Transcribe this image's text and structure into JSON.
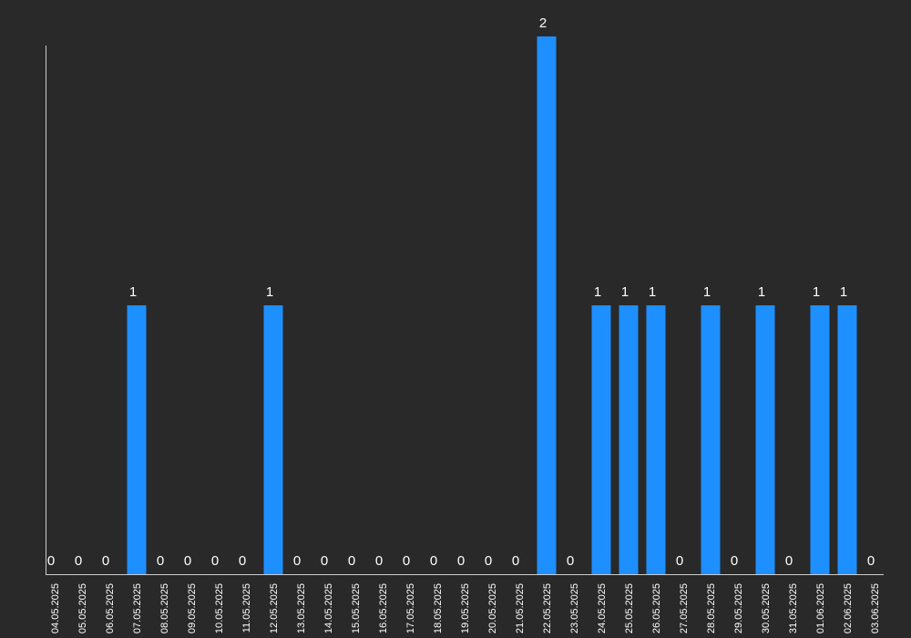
{
  "chart_data": {
    "type": "bar",
    "categories": [
      "04.05.2025",
      "05.05.2025",
      "06.05.2025",
      "07.05.2025",
      "08.05.2025",
      "09.05.2025",
      "10.05.2025",
      "11.05.2025",
      "12.05.2025",
      "13.05.2025",
      "14.05.2025",
      "15.05.2025",
      "16.05.2025",
      "17.05.2025",
      "18.05.2025",
      "19.05.2025",
      "20.05.2025",
      "21.05.2025",
      "22.05.2025",
      "23.05.2025",
      "24.05.2025",
      "25.05.2025",
      "26.05.2025",
      "27.05.2025",
      "28.05.2025",
      "29.05.2025",
      "30.05.2025",
      "31.05.2025",
      "01.06.2025",
      "02.06.2025",
      "03.06.2025"
    ],
    "values": [
      0,
      0,
      0,
      1,
      0,
      0,
      0,
      0,
      1,
      0,
      0,
      0,
      0,
      0,
      0,
      0,
      0,
      0,
      2,
      0,
      1,
      1,
      1,
      0,
      1,
      0,
      1,
      0,
      1,
      1,
      0
    ],
    "ylim": [
      0,
      2
    ],
    "grid": false,
    "legend": "none",
    "colors": {
      "bar": "#1e8fff",
      "background": "#292929",
      "axis": "#cccccc",
      "text": "#ffffff"
    }
  }
}
